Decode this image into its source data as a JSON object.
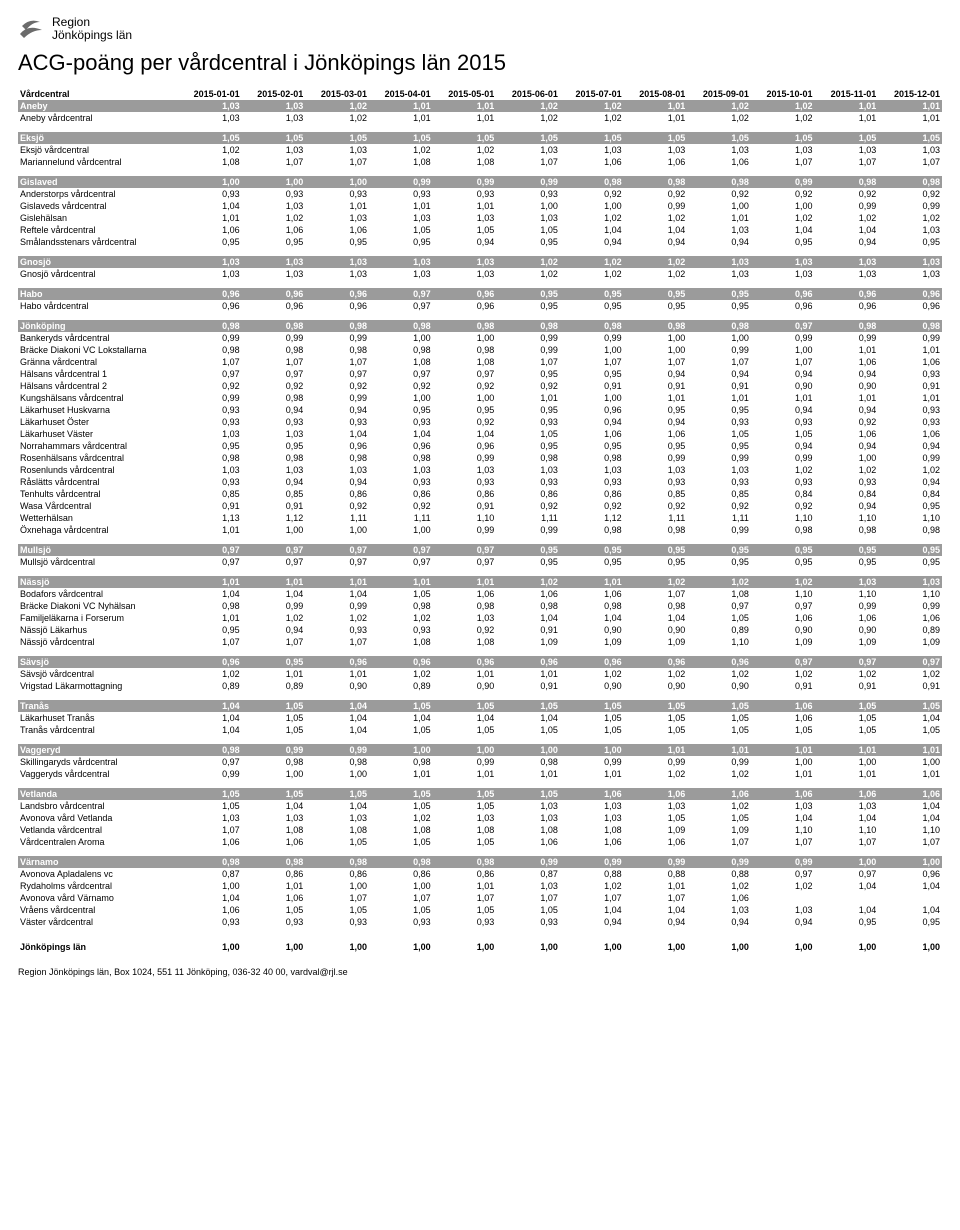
{
  "logo": {
    "text1": "Region",
    "text2": "Jönköpings län"
  },
  "title": "ACG-poäng per vårdcentral i Jönköpings län 2015",
  "columns": [
    "Vårdcentral",
    "2015-01-01",
    "2015-02-01",
    "2015-03-01",
    "2015-04-01",
    "2015-05-01",
    "2015-06-01",
    "2015-07-01",
    "2015-08-01",
    "2015-09-01",
    "2015-10-01",
    "2015-11-01",
    "2015-12-01"
  ],
  "groups": [
    {
      "header": [
        "Aneby",
        "1,03",
        "1,03",
        "1,02",
        "1,01",
        "1,01",
        "1,02",
        "1,02",
        "1,01",
        "1,02",
        "1,02",
        "1,01",
        "1,01"
      ],
      "rows": [
        [
          "Aneby vårdcentral",
          "1,03",
          "1,03",
          "1,02",
          "1,01",
          "1,01",
          "1,02",
          "1,02",
          "1,01",
          "1,02",
          "1,02",
          "1,01",
          "1,01"
        ]
      ]
    },
    {
      "header": [
        "Eksjö",
        "1,05",
        "1,05",
        "1,05",
        "1,05",
        "1,05",
        "1,05",
        "1,05",
        "1,05",
        "1,05",
        "1,05",
        "1,05",
        "1,05"
      ],
      "rows": [
        [
          "Eksjö vårdcentral",
          "1,02",
          "1,03",
          "1,03",
          "1,02",
          "1,02",
          "1,03",
          "1,03",
          "1,03",
          "1,03",
          "1,03",
          "1,03",
          "1,03"
        ],
        [
          "Mariannelund vårdcentral",
          "1,08",
          "1,07",
          "1,07",
          "1,08",
          "1,08",
          "1,07",
          "1,06",
          "1,06",
          "1,06",
          "1,07",
          "1,07",
          "1,07"
        ]
      ]
    },
    {
      "header": [
        "Gislaved",
        "1,00",
        "1,00",
        "1,00",
        "0,99",
        "0,99",
        "0,99",
        "0,98",
        "0,98",
        "0,98",
        "0,99",
        "0,98",
        "0,98"
      ],
      "rows": [
        [
          "Anderstorps vårdcentral",
          "0,93",
          "0,93",
          "0,93",
          "0,93",
          "0,93",
          "0,93",
          "0,92",
          "0,92",
          "0,92",
          "0,92",
          "0,92",
          "0,92"
        ],
        [
          "Gislaveds vårdcentral",
          "1,04",
          "1,03",
          "1,01",
          "1,01",
          "1,01",
          "1,00",
          "1,00",
          "0,99",
          "1,00",
          "1,00",
          "0,99",
          "0,99"
        ],
        [
          "Gislehälsan",
          "1,01",
          "1,02",
          "1,03",
          "1,03",
          "1,03",
          "1,03",
          "1,02",
          "1,02",
          "1,01",
          "1,02",
          "1,02",
          "1,02"
        ],
        [
          "Reftele vårdcentral",
          "1,06",
          "1,06",
          "1,06",
          "1,05",
          "1,05",
          "1,05",
          "1,04",
          "1,04",
          "1,03",
          "1,04",
          "1,04",
          "1,03"
        ],
        [
          "Smålandsstenars vårdcentral",
          "0,95",
          "0,95",
          "0,95",
          "0,95",
          "0,94",
          "0,95",
          "0,94",
          "0,94",
          "0,94",
          "0,95",
          "0,94",
          "0,95"
        ]
      ]
    },
    {
      "header": [
        "Gnosjö",
        "1,03",
        "1,03",
        "1,03",
        "1,03",
        "1,03",
        "1,02",
        "1,02",
        "1,02",
        "1,03",
        "1,03",
        "1,03",
        "1,03"
      ],
      "rows": [
        [
          "Gnosjö vårdcentral",
          "1,03",
          "1,03",
          "1,03",
          "1,03",
          "1,03",
          "1,02",
          "1,02",
          "1,02",
          "1,03",
          "1,03",
          "1,03",
          "1,03"
        ]
      ]
    },
    {
      "header": [
        "Habo",
        "0,96",
        "0,96",
        "0,96",
        "0,97",
        "0,96",
        "0,95",
        "0,95",
        "0,95",
        "0,95",
        "0,96",
        "0,96",
        "0,96"
      ],
      "rows": [
        [
          "Habo vårdcentral",
          "0,96",
          "0,96",
          "0,96",
          "0,97",
          "0,96",
          "0,95",
          "0,95",
          "0,95",
          "0,95",
          "0,96",
          "0,96",
          "0,96"
        ]
      ]
    },
    {
      "header": [
        "Jönköping",
        "0,98",
        "0,98",
        "0,98",
        "0,98",
        "0,98",
        "0,98",
        "0,98",
        "0,98",
        "0,98",
        "0,97",
        "0,98",
        "0,98"
      ],
      "rows": [
        [
          "Bankeryds vårdcentral",
          "0,99",
          "0,99",
          "0,99",
          "1,00",
          "1,00",
          "0,99",
          "0,99",
          "1,00",
          "1,00",
          "0,99",
          "0,99",
          "0,99"
        ],
        [
          "Bräcke Diakoni VC Lokstallarna",
          "0,98",
          "0,98",
          "0,98",
          "0,98",
          "0,98",
          "0,99",
          "1,00",
          "1,00",
          "0,99",
          "1,00",
          "1,01",
          "1,01"
        ],
        [
          "Gränna vårdcentral",
          "1,07",
          "1,07",
          "1,07",
          "1,08",
          "1,08",
          "1,07",
          "1,07",
          "1,07",
          "1,07",
          "1,07",
          "1,06",
          "1,06"
        ],
        [
          "Hälsans vårdcentral 1",
          "0,97",
          "0,97",
          "0,97",
          "0,97",
          "0,97",
          "0,95",
          "0,95",
          "0,94",
          "0,94",
          "0,94",
          "0,94",
          "0,93"
        ],
        [
          "Hälsans vårdcentral 2",
          "0,92",
          "0,92",
          "0,92",
          "0,92",
          "0,92",
          "0,92",
          "0,91",
          "0,91",
          "0,91",
          "0,90",
          "0,90",
          "0,91"
        ],
        [
          "Kungshälsans vårdcentral",
          "0,99",
          "0,98",
          "0,99",
          "1,00",
          "1,00",
          "1,01",
          "1,00",
          "1,01",
          "1,01",
          "1,01",
          "1,01",
          "1,01"
        ],
        [
          "Läkarhuset Huskvarna",
          "0,93",
          "0,94",
          "0,94",
          "0,95",
          "0,95",
          "0,95",
          "0,96",
          "0,95",
          "0,95",
          "0,94",
          "0,94",
          "0,93"
        ],
        [
          "Läkarhuset Öster",
          "0,93",
          "0,93",
          "0,93",
          "0,93",
          "0,92",
          "0,93",
          "0,94",
          "0,94",
          "0,93",
          "0,93",
          "0,92",
          "0,93"
        ],
        [
          "Läkarhuset Väster",
          "1,03",
          "1,03",
          "1,04",
          "1,04",
          "1,04",
          "1,05",
          "1,06",
          "1,06",
          "1,05",
          "1,05",
          "1,06",
          "1,06"
        ],
        [
          "Norrahammars vårdcentral",
          "0,95",
          "0,95",
          "0,96",
          "0,96",
          "0,96",
          "0,95",
          "0,95",
          "0,95",
          "0,95",
          "0,94",
          "0,94",
          "0,94"
        ],
        [
          "Rosenhälsans vårdcentral",
          "0,98",
          "0,98",
          "0,98",
          "0,98",
          "0,99",
          "0,98",
          "0,98",
          "0,99",
          "0,99",
          "0,99",
          "1,00",
          "0,99"
        ],
        [
          "Rosenlunds vårdcentral",
          "1,03",
          "1,03",
          "1,03",
          "1,03",
          "1,03",
          "1,03",
          "1,03",
          "1,03",
          "1,03",
          "1,02",
          "1,02",
          "1,02"
        ],
        [
          "Råslätts vårdcentral",
          "0,93",
          "0,94",
          "0,94",
          "0,93",
          "0,93",
          "0,93",
          "0,93",
          "0,93",
          "0,93",
          "0,93",
          "0,93",
          "0,94"
        ],
        [
          "Tenhults vårdcentral",
          "0,85",
          "0,85",
          "0,86",
          "0,86",
          "0,86",
          "0,86",
          "0,86",
          "0,85",
          "0,85",
          "0,84",
          "0,84",
          "0,84"
        ],
        [
          "Wasa Vårdcentral",
          "0,91",
          "0,91",
          "0,92",
          "0,92",
          "0,91",
          "0,92",
          "0,92",
          "0,92",
          "0,92",
          "0,92",
          "0,94",
          "0,95"
        ],
        [
          "Wetterhälsan",
          "1,13",
          "1,12",
          "1,11",
          "1,11",
          "1,10",
          "1,11",
          "1,12",
          "1,11",
          "1,11",
          "1,10",
          "1,10",
          "1,10"
        ],
        [
          "Öxnehaga vårdcentral",
          "1,01",
          "1,00",
          "1,00",
          "1,00",
          "0,99",
          "0,99",
          "0,98",
          "0,98",
          "0,99",
          "0,98",
          "0,98",
          "0,98"
        ]
      ]
    },
    {
      "header": [
        "Mullsjö",
        "0,97",
        "0,97",
        "0,97",
        "0,97",
        "0,97",
        "0,95",
        "0,95",
        "0,95",
        "0,95",
        "0,95",
        "0,95",
        "0,95"
      ],
      "rows": [
        [
          "Mullsjö vårdcentral",
          "0,97",
          "0,97",
          "0,97",
          "0,97",
          "0,97",
          "0,95",
          "0,95",
          "0,95",
          "0,95",
          "0,95",
          "0,95",
          "0,95"
        ]
      ]
    },
    {
      "header": [
        "Nässjö",
        "1,01",
        "1,01",
        "1,01",
        "1,01",
        "1,01",
        "1,02",
        "1,01",
        "1,02",
        "1,02",
        "1,02",
        "1,03",
        "1,03"
      ],
      "rows": [
        [
          "Bodafors vårdcentral",
          "1,04",
          "1,04",
          "1,04",
          "1,05",
          "1,06",
          "1,06",
          "1,06",
          "1,07",
          "1,08",
          "1,10",
          "1,10",
          "1,10"
        ],
        [
          "Bräcke Diakoni VC Nyhälsan",
          "0,98",
          "0,99",
          "0,99",
          "0,98",
          "0,98",
          "0,98",
          "0,98",
          "0,98",
          "0,97",
          "0,97",
          "0,99",
          "0,99"
        ],
        [
          "Familjeläkarna i Forserum",
          "1,01",
          "1,02",
          "1,02",
          "1,02",
          "1,03",
          "1,04",
          "1,04",
          "1,04",
          "1,05",
          "1,06",
          "1,06",
          "1,06"
        ],
        [
          "Nässjö Läkarhus",
          "0,95",
          "0,94",
          "0,93",
          "0,93",
          "0,92",
          "0,91",
          "0,90",
          "0,90",
          "0,89",
          "0,90",
          "0,90",
          "0,89"
        ],
        [
          "Nässjö vårdcentral",
          "1,07",
          "1,07",
          "1,07",
          "1,08",
          "1,08",
          "1,09",
          "1,09",
          "1,09",
          "1,10",
          "1,09",
          "1,09",
          "1,09"
        ]
      ]
    },
    {
      "header": [
        "Sävsjö",
        "0,96",
        "0,95",
        "0,96",
        "0,96",
        "0,96",
        "0,96",
        "0,96",
        "0,96",
        "0,96",
        "0,97",
        "0,97",
        "0,97"
      ],
      "rows": [
        [
          "Sävsjö vårdcentral",
          "1,02",
          "1,01",
          "1,01",
          "1,02",
          "1,01",
          "1,01",
          "1,02",
          "1,02",
          "1,02",
          "1,02",
          "1,02",
          "1,02"
        ],
        [
          "Vrigstad Läkarmottagning",
          "0,89",
          "0,89",
          "0,90",
          "0,89",
          "0,90",
          "0,91",
          "0,90",
          "0,90",
          "0,90",
          "0,91",
          "0,91",
          "0,91"
        ]
      ]
    },
    {
      "header": [
        "Tranås",
        "1,04",
        "1,05",
        "1,04",
        "1,05",
        "1,05",
        "1,05",
        "1,05",
        "1,05",
        "1,05",
        "1,06",
        "1,05",
        "1,05"
      ],
      "rows": [
        [
          "Läkarhuset Tranås",
          "1,04",
          "1,05",
          "1,04",
          "1,04",
          "1,04",
          "1,04",
          "1,05",
          "1,05",
          "1,05",
          "1,06",
          "1,05",
          "1,04"
        ],
        [
          "Tranås vårdcentral",
          "1,04",
          "1,05",
          "1,04",
          "1,05",
          "1,05",
          "1,05",
          "1,05",
          "1,05",
          "1,05",
          "1,05",
          "1,05",
          "1,05"
        ]
      ]
    },
    {
      "header": [
        "Vaggeryd",
        "0,98",
        "0,99",
        "0,99",
        "1,00",
        "1,00",
        "1,00",
        "1,00",
        "1,01",
        "1,01",
        "1,01",
        "1,01",
        "1,01"
      ],
      "rows": [
        [
          "Skillingaryds vårdcentral",
          "0,97",
          "0,98",
          "0,98",
          "0,98",
          "0,99",
          "0,98",
          "0,99",
          "0,99",
          "0,99",
          "1,00",
          "1,00",
          "1,00"
        ],
        [
          "Vaggeryds vårdcentral",
          "0,99",
          "1,00",
          "1,00",
          "1,01",
          "1,01",
          "1,01",
          "1,01",
          "1,02",
          "1,02",
          "1,01",
          "1,01",
          "1,01"
        ]
      ]
    },
    {
      "header": [
        "Vetlanda",
        "1,05",
        "1,05",
        "1,05",
        "1,05",
        "1,05",
        "1,05",
        "1,06",
        "1,06",
        "1,06",
        "1,06",
        "1,06",
        "1,06"
      ],
      "rows": [
        [
          "Landsbro vårdcentral",
          "1,05",
          "1,04",
          "1,04",
          "1,05",
          "1,05",
          "1,03",
          "1,03",
          "1,03",
          "1,02",
          "1,03",
          "1,03",
          "1,04"
        ],
        [
          "Avonova vård Vetlanda",
          "1,03",
          "1,03",
          "1,03",
          "1,02",
          "1,03",
          "1,03",
          "1,03",
          "1,05",
          "1,05",
          "1,04",
          "1,04",
          "1,04"
        ],
        [
          "Vetlanda vårdcentral",
          "1,07",
          "1,08",
          "1,08",
          "1,08",
          "1,08",
          "1,08",
          "1,08",
          "1,09",
          "1,09",
          "1,10",
          "1,10",
          "1,10"
        ],
        [
          "Vårdcentralen Aroma",
          "1,06",
          "1,06",
          "1,05",
          "1,05",
          "1,05",
          "1,06",
          "1,06",
          "1,06",
          "1,07",
          "1,07",
          "1,07",
          "1,07"
        ]
      ]
    },
    {
      "header": [
        "Värnamo",
        "0,98",
        "0,98",
        "0,98",
        "0,98",
        "0,98",
        "0,99",
        "0,99",
        "0,99",
        "0,99",
        "0,99",
        "1,00",
        "1,00"
      ],
      "rows": [
        [
          "Avonova Apladalens vc",
          "0,87",
          "0,86",
          "0,86",
          "0,86",
          "0,86",
          "0,87",
          "0,88",
          "0,88",
          "0,88",
          "0,97",
          "0,97",
          "0,96"
        ],
        [
          "Rydaholms vårdcentral",
          "1,00",
          "1,01",
          "1,00",
          "1,00",
          "1,01",
          "1,03",
          "1,02",
          "1,01",
          "1,02",
          "1,02",
          "1,04",
          "1,04"
        ],
        [
          "Avonova vård Värnamo",
          "1,04",
          "1,06",
          "1,07",
          "1,07",
          "1,07",
          "1,07",
          "1,07",
          "1,07",
          "1,06",
          "",
          "",
          ""
        ],
        [
          "Vråens vårdcentral",
          "1,06",
          "1,05",
          "1,05",
          "1,05",
          "1,05",
          "1,05",
          "1,04",
          "1,04",
          "1,03",
          "1,03",
          "1,04",
          "1,04"
        ],
        [
          "Väster vårdcentral",
          "0,93",
          "0,93",
          "0,93",
          "0,93",
          "0,93",
          "0,93",
          "0,94",
          "0,94",
          "0,94",
          "0,94",
          "0,95",
          "0,95"
        ]
      ]
    }
  ],
  "total": [
    "Jönköpings län",
    "1,00",
    "1,00",
    "1,00",
    "1,00",
    "1,00",
    "1,00",
    "1,00",
    "1,00",
    "1,00",
    "1,00",
    "1,00",
    "1,00"
  ],
  "footer": "Region Jönköpings län, Box 1024, 551 11 Jönköping, 036-32 40 00, vardval@rjl.se",
  "style": {
    "group_bg": "#9b9b9b",
    "group_fg": "#ffffff",
    "body_bg": "#ffffff",
    "font": "Arial",
    "font_size_table": 9,
    "font_size_title": 22
  }
}
